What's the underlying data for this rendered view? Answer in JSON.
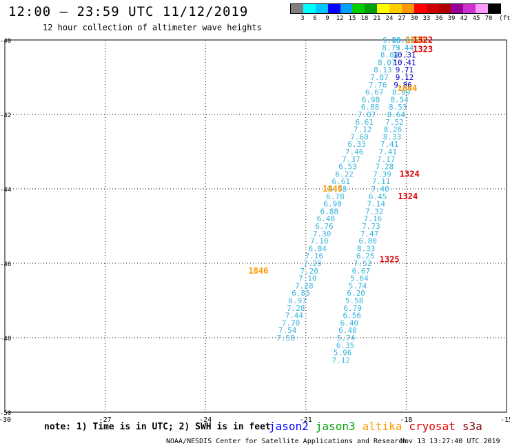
{
  "title": "12:00 — 23:59 UTC 11/12/2019",
  "subtitle": "12 hour collection of altimeter wave heights",
  "legend": {
    "unit": "(ft)",
    "swatches": [
      "#7f7f7f",
      "#00ffff",
      "#00c8ff",
      "#0000ff",
      "#00a0ff",
      "#00cd00",
      "#00a000",
      "#ffff00",
      "#ffcc00",
      "#ff9900",
      "#ff0000",
      "#d10000",
      "#b00000",
      "#990099",
      "#cc33cc",
      "#ff99ff",
      "#000000"
    ],
    "labels": [
      "3",
      "6",
      "9",
      "12",
      "15",
      "18",
      "21",
      "24",
      "27",
      "30",
      "33",
      "36",
      "39",
      "42",
      "45",
      "70"
    ]
  },
  "map": {
    "lon_ticks": [
      "-30",
      "-27",
      "-24",
      "-21",
      "-18",
      "-15"
    ],
    "lat_ticks": [
      "-40",
      "-42",
      "-44",
      "-46",
      "-48",
      "-50"
    ],
    "lon_range": [
      -30,
      -15
    ],
    "lat_range": [
      -50,
      -40
    ],
    "grid": "dotted",
    "tracks": [
      {
        "satellite": "jason3",
        "color": "#37b4dc",
        "points": [
          [
            -18.43,
            -40.0,
            "9.08"
          ],
          [
            -18.45,
            -40.2,
            "8.73"
          ],
          [
            -18.5,
            -40.4,
            "8.84"
          ],
          [
            -18.58,
            -40.6,
            "8.07"
          ],
          [
            -18.7,
            -40.8,
            "8.13"
          ],
          [
            -18.8,
            -41.0,
            "7.87"
          ],
          [
            -18.85,
            -41.2,
            "7.76"
          ],
          [
            -18.95,
            -41.4,
            "6.67"
          ],
          [
            -19.06,
            -41.6,
            "6.98"
          ],
          [
            -19.08,
            -41.8,
            "6.88"
          ],
          [
            -19.18,
            -42.0,
            "7.07"
          ],
          [
            -19.25,
            -42.2,
            "6.61"
          ],
          [
            -19.3,
            -42.4,
            "7.12"
          ],
          [
            -19.4,
            -42.6,
            "7.60"
          ],
          [
            -19.48,
            -42.8,
            "6.33"
          ],
          [
            -19.55,
            -43.0,
            "7.46"
          ],
          [
            -19.65,
            -43.2,
            "7.37"
          ],
          [
            -19.75,
            -43.4,
            "6.53"
          ],
          [
            -19.85,
            -43.6,
            "6.22"
          ],
          [
            -19.95,
            -43.8,
            "6.61"
          ],
          [
            -20.05,
            -44.0,
            "6.78"
          ],
          [
            -20.12,
            -44.2,
            "6.78"
          ],
          [
            -20.2,
            -44.4,
            "6.90"
          ],
          [
            -20.3,
            -44.6,
            "6.88"
          ],
          [
            -20.4,
            -44.8,
            "6.48"
          ],
          [
            -20.45,
            -45.0,
            "6.76"
          ],
          [
            -20.52,
            -45.2,
            "7.30"
          ],
          [
            -20.6,
            -45.4,
            "7.10"
          ],
          [
            -20.65,
            -45.6,
            "6.84"
          ],
          [
            -20.75,
            -45.8,
            "7.16"
          ],
          [
            -20.8,
            -46.0,
            "7.29"
          ],
          [
            -20.9,
            -46.2,
            "7.20"
          ],
          [
            -20.95,
            -46.4,
            "7.10"
          ],
          [
            -21.05,
            -46.6,
            "7.28"
          ],
          [
            -21.15,
            -46.8,
            "6.83"
          ],
          [
            -21.25,
            -47.0,
            "6.97"
          ],
          [
            -21.3,
            -47.2,
            "7.28"
          ],
          [
            -21.35,
            -47.4,
            "7.44"
          ],
          [
            -21.45,
            -47.6,
            "7.70"
          ],
          [
            -21.55,
            -47.8,
            "7.54"
          ],
          [
            -21.6,
            -48.0,
            "7.58"
          ]
        ]
      },
      {
        "satellite": "jason3",
        "color": "#37b4dc",
        "points": [
          [
            -18.1,
            -40.0,
            "10.81"
          ],
          [
            -18.05,
            -40.2,
            "9.44"
          ],
          [
            -18.15,
            -41.4,
            "8.09"
          ],
          [
            -18.2,
            -41.6,
            "8.54"
          ],
          [
            -18.25,
            -41.8,
            "8.53"
          ],
          [
            -18.3,
            -42.0,
            "8.64"
          ],
          [
            -18.35,
            -42.2,
            "7.52"
          ],
          [
            -18.4,
            -42.4,
            "8.26"
          ],
          [
            -18.42,
            -42.6,
            "8.33"
          ],
          [
            -18.5,
            -42.8,
            "7.41"
          ],
          [
            -18.55,
            -43.0,
            "7.41"
          ],
          [
            -18.6,
            -43.2,
            "7.17"
          ],
          [
            -18.65,
            -43.4,
            "7.28"
          ],
          [
            -18.72,
            -43.6,
            "7.39"
          ],
          [
            -18.75,
            -43.8,
            "7.11"
          ],
          [
            -18.78,
            -44.0,
            "7.40"
          ],
          [
            -18.85,
            -44.2,
            "6.45"
          ],
          [
            -18.9,
            -44.4,
            "7.14"
          ],
          [
            -18.95,
            -44.6,
            "7.32"
          ],
          [
            -19.0,
            -44.8,
            "7.16"
          ],
          [
            -19.05,
            -45.0,
            "7.73"
          ],
          [
            -19.1,
            -45.2,
            "7.47"
          ],
          [
            -19.15,
            -45.4,
            "6.80"
          ],
          [
            -19.2,
            -45.6,
            "8.33"
          ],
          [
            -19.22,
            -45.8,
            "6.25"
          ],
          [
            -19.3,
            -46.0,
            "7.52"
          ],
          [
            -19.35,
            -46.2,
            "6.67"
          ],
          [
            -19.4,
            -46.4,
            "5.64"
          ],
          [
            -19.45,
            -46.6,
            "5.74"
          ],
          [
            -19.5,
            -46.8,
            "6.20"
          ],
          [
            -19.55,
            -47.0,
            "5.58"
          ],
          [
            -19.6,
            -47.2,
            "6.79"
          ],
          [
            -19.62,
            -47.4,
            "6.56"
          ],
          [
            -19.7,
            -47.6,
            "6.40"
          ],
          [
            -19.75,
            -47.8,
            "6.40"
          ],
          [
            -19.8,
            -48.0,
            "5.74"
          ],
          [
            -19.82,
            -48.2,
            "6.35"
          ],
          [
            -19.9,
            -48.4,
            "5.96"
          ],
          [
            -19.95,
            -48.6,
            "7.12"
          ]
        ]
      },
      {
        "satellite": "jason2",
        "color": "#0000cc",
        "points": [
          [
            -18.05,
            -40.4,
            "10.31"
          ],
          [
            -18.05,
            -40.6,
            "10.41"
          ],
          [
            -18.05,
            -40.8,
            "9.71"
          ],
          [
            -18.05,
            -41.0,
            "9.12"
          ],
          [
            -18.1,
            -41.2,
            "9.86"
          ]
        ]
      },
      {
        "satellite": "altika",
        "color": "#ff9900",
        "points": [
          [
            -17.72,
            -40.0,
            "1322"
          ],
          [
            -17.97,
            -41.3,
            "1844"
          ],
          [
            -20.2,
            -44.0,
            "1845"
          ],
          [
            -22.42,
            -46.2,
            "1846"
          ]
        ]
      },
      {
        "satellite": "cryosat",
        "color": "#dd0000",
        "points": [
          [
            -17.5,
            -40.0,
            "1322"
          ],
          [
            -17.5,
            -40.25,
            "1323"
          ],
          [
            -17.9,
            -43.6,
            "1324"
          ],
          [
            -17.95,
            -44.2,
            "1324"
          ],
          [
            -18.5,
            -45.9,
            "1325"
          ]
        ]
      }
    ]
  },
  "footer": {
    "note": "note: 1) Time is in UTC; 2) SWH is in feet",
    "satellites": [
      {
        "name": "jason2",
        "color": "#0000ff"
      },
      {
        "name": "jason3",
        "color": "#00a000"
      },
      {
        "name": "altika",
        "color": "#ff9900"
      },
      {
        "name": "cryosat",
        "color": "#dd0000"
      },
      {
        "name": "s3a",
        "color": "#800000"
      }
    ],
    "credit": "NOAA/NESDIS Center for Satellite Applications and Research",
    "timestamp": "Nov 13 13:27:40 UTC 2019"
  }
}
